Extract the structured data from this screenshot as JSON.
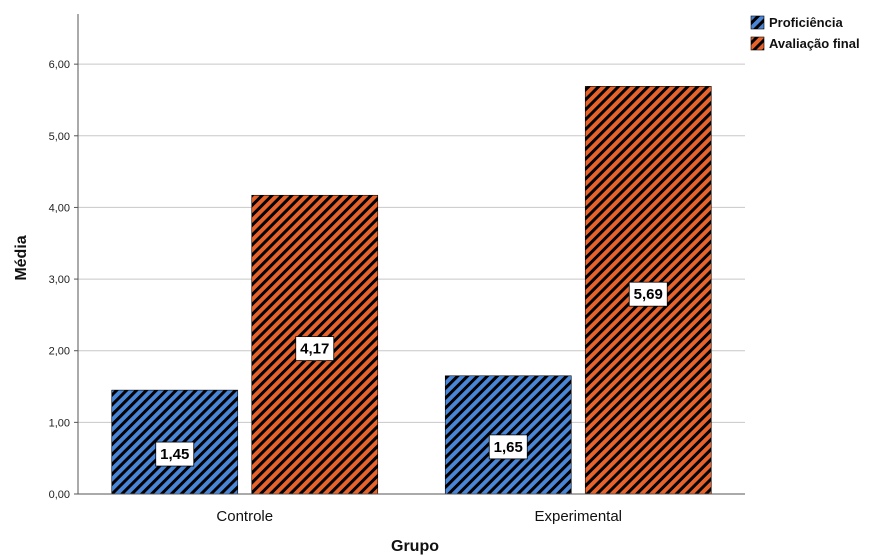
{
  "chart_data": {
    "type": "bar",
    "xlabel": "Grupo",
    "ylabel": "Média",
    "categories": [
      "Controle",
      "Experimental"
    ],
    "series": [
      {
        "name": "Proficiência",
        "values": [
          1.45,
          1.65
        ],
        "labels": [
          "1,45",
          "1,65"
        ],
        "color": "#4a86d8"
      },
      {
        "name": "Avaliação final",
        "values": [
          4.17,
          5.69
        ],
        "labels": [
          "4,17",
          "5,69"
        ],
        "color": "#e8632c"
      }
    ],
    "ylim": [
      0,
      6.7
    ],
    "yticks": [
      0,
      1,
      2,
      3,
      4,
      5,
      6
    ],
    "ytick_labels": [
      "0,00",
      "1,00",
      "2,00",
      "3,00",
      "4,00",
      "5,00",
      "6,00"
    ],
    "grid": true,
    "legend": "top-right",
    "pattern": "diagonal-hatch"
  }
}
